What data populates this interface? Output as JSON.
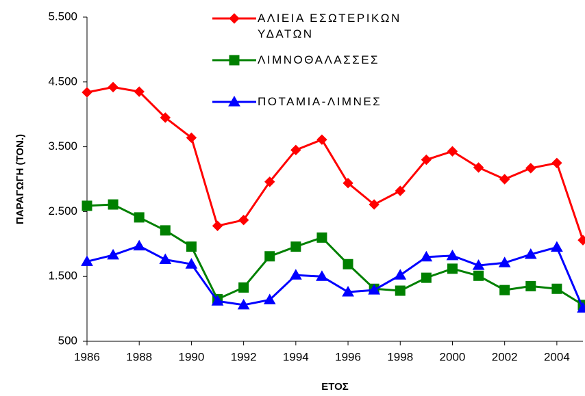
{
  "chart_data": {
    "type": "line",
    "x_label": "ΕΤΟΣ",
    "y_label": "ΠΑΡΑΓΩΓΗ (ΤΟΝ.)",
    "x": [
      1986,
      1987,
      1988,
      1989,
      1990,
      1991,
      1992,
      1993,
      1994,
      1995,
      1996,
      1997,
      1998,
      1999,
      2000,
      2001,
      2002,
      2003,
      2004,
      2005
    ],
    "series": [
      {
        "name": "ΑΛΙΕΙΑ ΕΣΩΤΕΡΙΚΩΝ ΥΔΑΤΩΝ",
        "color": "#ff0000",
        "marker": "diamond",
        "values": [
          4340,
          4420,
          4350,
          3950,
          3640,
          2280,
          2370,
          2960,
          3450,
          3610,
          2940,
          2610,
          2820,
          3300,
          3430,
          3180,
          3000,
          3170,
          3250,
          2060
        ]
      },
      {
        "name": "ΛΙΜΝΟΘΑΛΑΣΣΕΣ",
        "color": "#008000",
        "marker": "square",
        "values": [
          2590,
          2610,
          2410,
          2210,
          1960,
          1150,
          1330,
          1810,
          1960,
          2100,
          1690,
          1310,
          1280,
          1480,
          1620,
          1510,
          1290,
          1350,
          1310,
          1060
        ]
      },
      {
        "name": "ΠΟΤΑΜΙΑ-ΛΙΜΝΕΣ",
        "color": "#0000ff",
        "marker": "triangle",
        "values": [
          1730,
          1830,
          1970,
          1760,
          1690,
          1120,
          1060,
          1140,
          1520,
          1500,
          1260,
          1290,
          1520,
          1800,
          1820,
          1670,
          1710,
          1840,
          1950,
          1010
        ]
      }
    ],
    "xlim": [
      1986,
      2005
    ],
    "xticks": [
      1986,
      1988,
      1990,
      1992,
      1994,
      1996,
      1998,
      2000,
      2002,
      2004
    ],
    "ylim": [
      500,
      5500
    ],
    "yticks": [
      500,
      {
        "value": 1500,
        "label": "1.500"
      },
      {
        "value": 2500,
        "label": "2.500"
      },
      {
        "value": 3500,
        "label": "3.500"
      },
      {
        "value": 4500,
        "label": "4.500"
      },
      {
        "value": 5500,
        "label": "5.500"
      }
    ],
    "grid": false
  }
}
